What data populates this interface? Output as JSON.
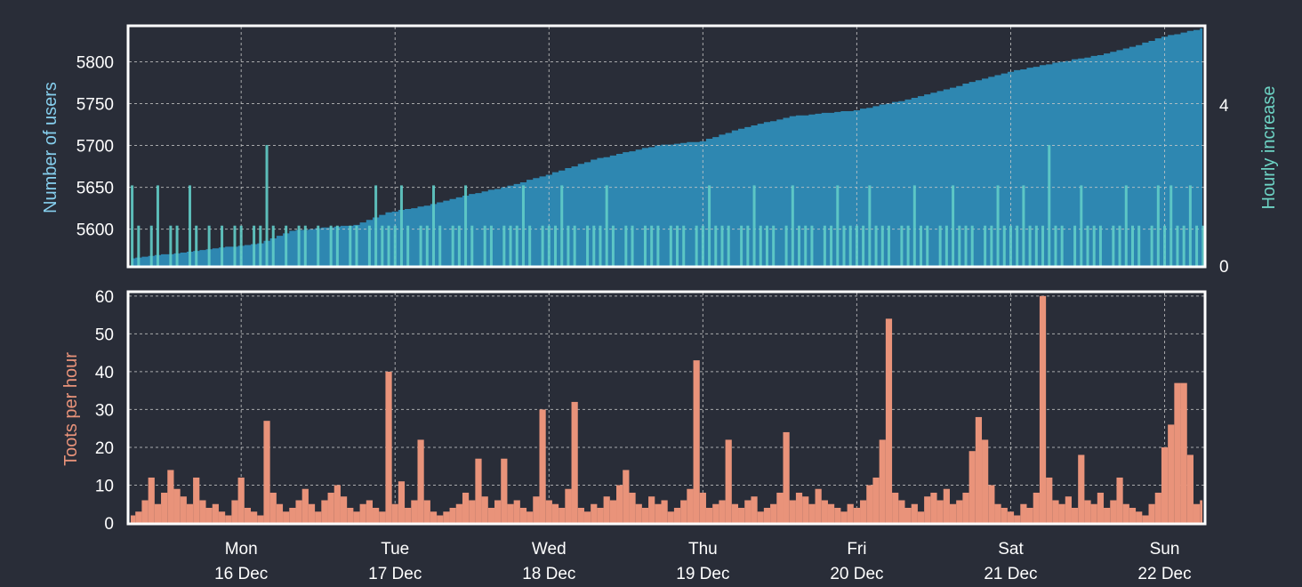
{
  "chart_data": [
    {
      "type": "area",
      "panel": "top",
      "ylabel": "Number of users",
      "ylabel_right": "Hourly increase",
      "ylim": [
        5556,
        5842
      ],
      "ylim_right": [
        0,
        5.94
      ],
      "yticks": [
        "5600",
        "5650",
        "5700",
        "5750",
        "5800"
      ],
      "yticks_right": [
        "0",
        "4"
      ],
      "grid": true,
      "colors": {
        "users": "#2e87b1",
        "increase": "#62cdc8",
        "ylabel": "#86cfee",
        "ylabel_right": "#6dd3c4"
      },
      "series": [
        {
          "key": "users",
          "style": "step-area",
          "points": [
            [
              "15 Dec 07:00",
              5565
            ],
            [
              "15 Dec 18:00",
              5575
            ],
            [
              "16 Dec 03:00",
              5583
            ],
            [
              "16 Dec 08:00",
              5598
            ],
            [
              "16 Dec 18:00",
              5605
            ],
            [
              "16 Dec 23:00",
              5620
            ],
            [
              "17 Dec 05:00",
              5628
            ],
            [
              "17 Dec 11:00",
              5640
            ],
            [
              "17 Dec 17:00",
              5650
            ],
            [
              "18 Dec 00:00",
              5665
            ],
            [
              "18 Dec 07:00",
              5683
            ],
            [
              "18 Dec 17:00",
              5700
            ],
            [
              "19 Dec 00:00",
              5705
            ],
            [
              "19 Dec 06:00",
              5720
            ],
            [
              "19 Dec 14:00",
              5735
            ],
            [
              "20 Dec 00:00",
              5742
            ],
            [
              "20 Dec 08:00",
              5755
            ],
            [
              "20 Dec 13:00",
              5765
            ],
            [
              "20 Dec 20:00",
              5780
            ],
            [
              "21 Dec 01:00",
              5790
            ],
            [
              "21 Dec 08:00",
              5800
            ],
            [
              "21 Dec 14:00",
              5808
            ],
            [
              "21 Dec 20:00",
              5820
            ],
            [
              "22 Dec 00:00",
              5830
            ],
            [
              "22 Dec 06:00",
              5840
            ]
          ]
        },
        {
          "key": "increase",
          "style": "bars",
          "axis": "right",
          "start": "15 Dec 07:00",
          "interval_hours": 1,
          "values": [
            2,
            1,
            0,
            1,
            2,
            0,
            1,
            1,
            0,
            2,
            1,
            0,
            1,
            0,
            1,
            0,
            1,
            1,
            0,
            1,
            1,
            3,
            1,
            0,
            1,
            0,
            1,
            1,
            0,
            1,
            0,
            1,
            1,
            0,
            1,
            1,
            0,
            1,
            2,
            1,
            1,
            1,
            2,
            1,
            0,
            1,
            1,
            2,
            1,
            0,
            1,
            1,
            2,
            1,
            0,
            1,
            1,
            0,
            1,
            1,
            1,
            2,
            1,
            0,
            1,
            1,
            1,
            2,
            1,
            1,
            0,
            1,
            1,
            1,
            2,
            1,
            0,
            1,
            1,
            0,
            1,
            1,
            1,
            0,
            1,
            1,
            1,
            0,
            1,
            1,
            2,
            1,
            1,
            1,
            0,
            1,
            1,
            2,
            1,
            1,
            1,
            0,
            1,
            2,
            1,
            1,
            1,
            0,
            1,
            1,
            2,
            1,
            1,
            1,
            1,
            2,
            1,
            1,
            1,
            0,
            1,
            1,
            2,
            1,
            1,
            0,
            1,
            1,
            2,
            1,
            1,
            1,
            0,
            1,
            1,
            2,
            1,
            1,
            1,
            2,
            1,
            1,
            1,
            3,
            1,
            1,
            0,
            1,
            2,
            1,
            1,
            1,
            0,
            1,
            1,
            2,
            1,
            1,
            0,
            1,
            2,
            1,
            2,
            1,
            1,
            2,
            1,
            1
          ]
        }
      ]
    },
    {
      "type": "area",
      "panel": "bottom",
      "ylabel": "Toots per hour",
      "ylim": [
        0,
        60.9
      ],
      "yticks": [
        "0",
        "10",
        "20",
        "30",
        "40",
        "50",
        "60"
      ],
      "grid": true,
      "colors": {
        "toots": "#e9937a",
        "ylabel": "#e9937a"
      },
      "series": [
        {
          "key": "toots",
          "style": "step-area",
          "start": "15 Dec 07:00",
          "interval_hours": 1,
          "values": [
            2,
            3,
            6,
            12,
            5,
            8,
            14,
            9,
            7,
            5,
            12,
            6,
            4,
            5,
            3,
            2,
            6,
            12,
            4,
            3,
            2,
            27,
            8,
            5,
            3,
            4,
            6,
            9,
            5,
            3,
            6,
            8,
            10,
            7,
            4,
            3,
            5,
            6,
            4,
            3,
            40,
            5,
            11,
            4,
            6,
            22,
            6,
            3,
            2,
            3,
            4,
            5,
            8,
            6,
            17,
            7,
            4,
            6,
            17,
            5,
            6,
            4,
            3,
            7,
            30,
            6,
            5,
            4,
            9,
            32,
            4,
            3,
            5,
            4,
            7,
            6,
            10,
            14,
            8,
            5,
            4,
            7,
            5,
            6,
            3,
            4,
            6,
            9,
            43,
            8,
            4,
            5,
            6,
            22,
            5,
            4,
            6,
            7,
            3,
            4,
            5,
            8,
            24,
            6,
            8,
            7,
            5,
            9,
            6,
            5,
            4,
            3,
            5,
            4,
            6,
            10,
            12,
            22,
            54,
            8,
            6,
            4,
            5,
            3,
            7,
            8,
            6,
            9,
            5,
            6,
            8,
            19,
            28,
            22,
            10,
            5,
            4,
            3,
            2,
            5,
            4,
            8,
            60,
            12,
            6,
            5,
            7,
            4,
            18,
            6,
            5,
            8,
            4,
            6,
            12,
            5,
            4,
            3,
            2,
            5,
            8,
            20,
            26,
            37,
            37,
            18,
            5,
            6
          ]
        }
      ]
    }
  ],
  "xaxis": {
    "xlim": [
      "15 Dec 06:30",
      "22 Dec 06:10"
    ],
    "ticks": [
      {
        "at": "16 Dec 00:00",
        "day": "Mon",
        "date": "16 Dec"
      },
      {
        "at": "17 Dec 00:00",
        "day": "Tue",
        "date": "17 Dec"
      },
      {
        "at": "18 Dec 00:00",
        "day": "Wed",
        "date": "18 Dec"
      },
      {
        "at": "19 Dec 00:00",
        "day": "Thu",
        "date": "19 Dec"
      },
      {
        "at": "20 Dec 00:00",
        "day": "Fri",
        "date": "20 Dec"
      },
      {
        "at": "21 Dec 00:00",
        "day": "Sat",
        "date": "21 Dec"
      },
      {
        "at": "22 Dec 00:00",
        "day": "Sun",
        "date": "22 Dec"
      }
    ]
  }
}
